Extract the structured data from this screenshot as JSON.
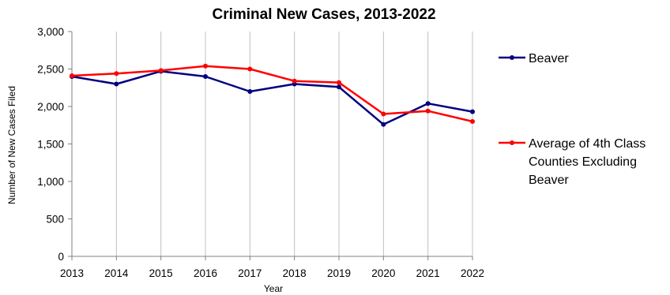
{
  "chart_data": {
    "type": "line",
    "title": "Criminal New Cases, 2013-2022",
    "xlabel": "Year",
    "ylabel": "Number of New Cases Filed",
    "categories": [
      "2013",
      "2014",
      "2015",
      "2016",
      "2017",
      "2018",
      "2019",
      "2020",
      "2021",
      "2022"
    ],
    "ylim": [
      0,
      3000
    ],
    "yticks": [
      0,
      500,
      1000,
      1500,
      2000,
      2500,
      3000
    ],
    "ytick_labels": [
      "0",
      "500",
      "1,000",
      "1,500",
      "2,000",
      "2,500",
      "3,000"
    ],
    "grid": true,
    "legend_position": "right",
    "series": [
      {
        "name": "Beaver",
        "color": "#000080",
        "values": [
          2400,
          2300,
          2470,
          2400,
          2200,
          2300,
          2260,
          1760,
          2040,
          1930
        ]
      },
      {
        "name": "Average of 4th Class Counties Excluding Beaver",
        "legend_lines": [
          "Average of 4th Class",
          "Counties Excluding",
          "Beaver"
        ],
        "color": "#ff0000",
        "values": [
          2410,
          2440,
          2480,
          2540,
          2500,
          2340,
          2320,
          1900,
          1940,
          1800
        ]
      }
    ]
  }
}
